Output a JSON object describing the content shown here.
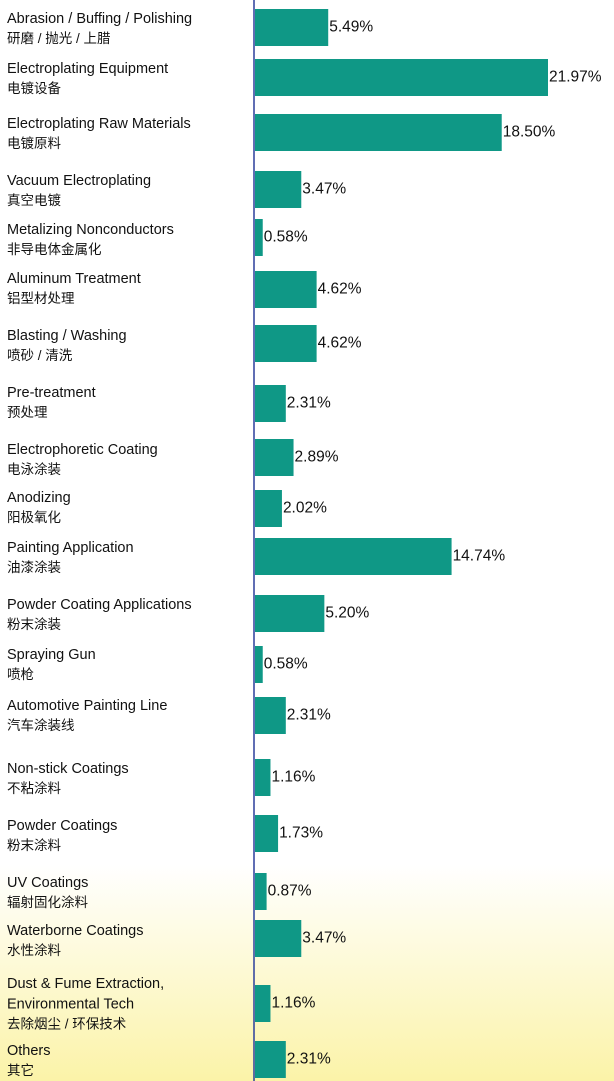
{
  "chart_data": {
    "type": "bar",
    "orientation": "horizontal",
    "color": "#0f9886",
    "categories": [
      [
        "Abrasion / Buffing / Polishing",
        "研磨 / 抛光 / 上腊"
      ],
      [
        "Electroplating Equipment",
        "电镀设备"
      ],
      [
        "Electroplating Raw Materials",
        "电镀原料"
      ],
      [
        "Vacuum Electroplating",
        "真空电镀"
      ],
      [
        "Metalizing Nonconductors",
        "非导电体金属化"
      ],
      [
        "Aluminum Treatment",
        "铝型材处理"
      ],
      [
        "Blasting / Washing",
        "喷砂 / 清洗"
      ],
      [
        "Pre-treatment",
        "预处理"
      ],
      [
        "Electrophoretic Coating",
        "电泳涂装"
      ],
      [
        "Anodizing",
        "阳极氧化"
      ],
      [
        "Painting Application",
        "油漆涂装"
      ],
      [
        "Powder Coating Applications",
        "粉末涂装"
      ],
      [
        "Spraying Gun",
        "喷枪"
      ],
      [
        "Automotive Painting Line",
        "汽车涂装线"
      ],
      [
        "Non-stick Coatings",
        "不粘涂料"
      ],
      [
        "Powder Coatings",
        "粉末涂料"
      ],
      [
        "UV Coatings",
        "辐射固化涂料"
      ],
      [
        "Waterborne Coatings",
        "水性涂料"
      ],
      [
        "Dust & Fume Extraction,",
        "Environmental Tech",
        "去除烟尘 / 环保技术"
      ],
      [
        "Others",
        "其它"
      ]
    ],
    "values": [
      5.49,
      21.97,
      18.5,
      3.47,
      0.58,
      4.62,
      4.62,
      2.31,
      2.89,
      2.02,
      14.74,
      5.2,
      0.58,
      2.31,
      1.16,
      1.73,
      0.87,
      3.47,
      1.16,
      2.31
    ],
    "value_labels": [
      "5.49%",
      "21.97%",
      "18.50%",
      "3.47%",
      "0.58%",
      "4.62%",
      "4.62%",
      "2.31%",
      "2.89%",
      "2.02%",
      "14.74%",
      "5.20%",
      "0.58%",
      "2.31%",
      "1.16%",
      "1.73%",
      "0.87%",
      "3.47%",
      "1.16%",
      "2.31%"
    ]
  }
}
